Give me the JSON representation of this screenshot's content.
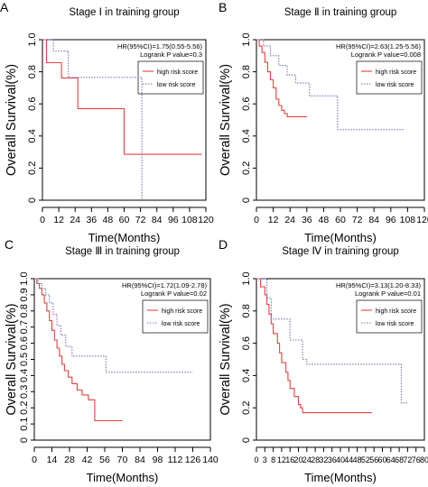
{
  "colors": {
    "high": "#e8413f",
    "low": "#6f77b8",
    "axis": "#000000"
  },
  "chart_data": [
    {
      "panel_letter": "A",
      "type": "line",
      "title": "Stage Ⅰ in training  group",
      "xlabel": "Time(Months)",
      "ylabel": "Overall Survival(%)",
      "xlim": [
        0,
        120
      ],
      "ylim": [
        0,
        1
      ],
      "xticks": [
        "0",
        "12",
        "24",
        "36",
        "48",
        "60",
        "72",
        "84",
        "96",
        "108",
        "120"
      ],
      "yticks": [
        "0",
        "0.2",
        "0.4",
        "0.6",
        "0.8",
        "1.0"
      ],
      "grid": false,
      "legend_position": "top-right",
      "annotation": [
        "HR(95%CI)=1.75(0.55-5.56)",
        "Logrank P value=0.3"
      ],
      "series": [
        {
          "name": "high risk score",
          "style": "solid",
          "x": [
            0,
            3,
            3,
            14,
            14,
            26,
            26,
            60,
            60,
            117
          ],
          "y": [
            1,
            1,
            0.857,
            0.857,
            0.762,
            0.762,
            0.571,
            0.571,
            0.286,
            0.286
          ]
        },
        {
          "name": "low risk score",
          "style": "dotted",
          "x": [
            0,
            8,
            8,
            19,
            19,
            73,
            73
          ],
          "y": [
            1,
            1,
            0.929,
            0.929,
            0.765,
            0.765,
            0
          ]
        }
      ]
    },
    {
      "panel_letter": "B",
      "type": "line",
      "title": "Stage Ⅱ in training  group",
      "xlabel": "Time(Months)",
      "ylabel": "Overall Survival(%)",
      "xlim": [
        0,
        120
      ],
      "ylim": [
        0,
        1
      ],
      "xticks": [
        "0",
        "12",
        "24",
        "36",
        "48",
        "60",
        "72",
        "84",
        "96",
        "108",
        "120"
      ],
      "yticks": [
        "0",
        "0.2",
        "0.4",
        "0.6",
        "0.8",
        "1.0"
      ],
      "grid": false,
      "legend_position": "top-right",
      "annotation": [
        "HR(95%CI)=2.63(1.25-5.56)",
        "Logrank P value=0.008"
      ],
      "series": [
        {
          "name": "high risk score",
          "style": "solid",
          "x": [
            0,
            2,
            2,
            4,
            4,
            6,
            6,
            8,
            8,
            10,
            10,
            12,
            12,
            14,
            14,
            16,
            16,
            18,
            18,
            20,
            20,
            22,
            22,
            36
          ],
          "y": [
            1,
            1,
            0.96,
            0.96,
            0.92,
            0.92,
            0.86,
            0.86,
            0.8,
            0.8,
            0.75,
            0.75,
            0.7,
            0.7,
            0.63,
            0.63,
            0.59,
            0.59,
            0.56,
            0.56,
            0.54,
            0.54,
            0.52,
            0.52
          ]
        },
        {
          "name": "low risk score",
          "style": "dotted",
          "x": [
            0,
            5,
            5,
            10,
            10,
            16,
            16,
            22,
            22,
            28,
            28,
            38,
            38,
            58,
            58,
            106
          ],
          "y": [
            1,
            1,
            0.96,
            0.96,
            0.9,
            0.9,
            0.84,
            0.84,
            0.78,
            0.78,
            0.73,
            0.73,
            0.65,
            0.65,
            0.44,
            0.44
          ]
        }
      ]
    },
    {
      "panel_letter": "C",
      "type": "line",
      "title": "Stage Ⅲ in training  group",
      "xlabel": "Time(Months)",
      "ylabel": "Overall Survival(%)",
      "xlim": [
        0,
        140
      ],
      "ylim": [
        0,
        1
      ],
      "xticks": [
        "0",
        "14",
        "28",
        "42",
        "56",
        "70",
        "84",
        "98",
        "112",
        "126",
        "140"
      ],
      "yticks": [
        "0",
        "0.1",
        "0.2",
        "0.3",
        "0.4",
        "0.5",
        "0.6",
        "0.7",
        "0.8",
        "0.9",
        "1.0"
      ],
      "grid": false,
      "legend_position": "top-right",
      "annotation": [
        "HR(95%CI)=1.72(1.09-2.78)",
        "Logrank P value=0.02"
      ],
      "series": [
        {
          "name": "high risk score",
          "style": "solid",
          "x": [
            0,
            2,
            2,
            4,
            4,
            6,
            6,
            8,
            8,
            10,
            10,
            12,
            12,
            14,
            14,
            16,
            16,
            18,
            18,
            20,
            20,
            22,
            22,
            24,
            24,
            27,
            27,
            30,
            30,
            34,
            34,
            38,
            38,
            43,
            43,
            48,
            48,
            70
          ],
          "y": [
            1,
            1,
            0.97,
            0.97,
            0.94,
            0.94,
            0.9,
            0.9,
            0.85,
            0.85,
            0.8,
            0.8,
            0.74,
            0.74,
            0.68,
            0.68,
            0.62,
            0.62,
            0.57,
            0.57,
            0.52,
            0.52,
            0.47,
            0.47,
            0.43,
            0.43,
            0.39,
            0.39,
            0.35,
            0.35,
            0.31,
            0.31,
            0.28,
            0.28,
            0.25,
            0.25,
            0.12,
            0.12
          ]
        },
        {
          "name": "low risk score",
          "style": "dotted",
          "x": [
            0,
            3,
            3,
            6,
            6,
            9,
            9,
            12,
            12,
            15,
            15,
            18,
            18,
            21,
            21,
            25,
            25,
            30,
            30,
            57,
            57,
            126
          ],
          "y": [
            1,
            1,
            0.97,
            0.97,
            0.94,
            0.94,
            0.9,
            0.9,
            0.85,
            0.85,
            0.78,
            0.78,
            0.71,
            0.71,
            0.65,
            0.65,
            0.58,
            0.58,
            0.52,
            0.52,
            0.42,
            0.42
          ]
        }
      ]
    },
    {
      "panel_letter": "D",
      "type": "line",
      "title": "Stage Ⅳ in training  group",
      "xlabel": "Time(Months)",
      "ylabel": "Overall Survival(%)",
      "xlim": [
        0,
        80
      ],
      "ylim": [
        0,
        1
      ],
      "xticks": [
        "0",
        "3",
        "8",
        "12",
        "16",
        "20",
        "24",
        "28",
        "32",
        "36",
        "40",
        "44",
        "48",
        "52",
        "56",
        "60",
        "64",
        "68",
        "72",
        "76",
        "80"
      ],
      "yticks": [
        "0",
        "0.2",
        "0.4",
        "0.6",
        "0.8",
        "1.0"
      ],
      "grid": false,
      "legend_position": "top-right",
      "annotation": [
        "HR(95%CI)=3.13(1.20-8.33)",
        "Logrank P value=0.01"
      ],
      "series": [
        {
          "name": "high risk score",
          "style": "solid",
          "x": [
            0,
            2,
            2,
            4,
            4,
            5,
            5,
            6,
            6,
            7,
            7,
            8,
            8,
            10,
            10,
            11,
            11,
            12,
            12,
            14,
            14,
            15,
            15,
            16,
            16,
            18,
            18,
            20,
            20,
            21,
            21,
            22,
            22,
            55
          ],
          "y": [
            1,
            1,
            0.95,
            0.95,
            0.9,
            0.9,
            0.84,
            0.84,
            0.78,
            0.78,
            0.72,
            0.72,
            0.66,
            0.66,
            0.6,
            0.6,
            0.54,
            0.54,
            0.48,
            0.48,
            0.42,
            0.42,
            0.37,
            0.37,
            0.32,
            0.32,
            0.27,
            0.27,
            0.22,
            0.22,
            0.2,
            0.2,
            0.17,
            0.17
          ]
        },
        {
          "name": "low risk score",
          "style": "dotted",
          "x": [
            0,
            5,
            5,
            7,
            7,
            16,
            16,
            22,
            22,
            24,
            24,
            69,
            69,
            72
          ],
          "y": [
            1,
            1,
            0.88,
            0.88,
            0.75,
            0.75,
            0.62,
            0.62,
            0.5,
            0.5,
            0.47,
            0.47,
            0.23,
            0.23
          ]
        }
      ]
    }
  ]
}
